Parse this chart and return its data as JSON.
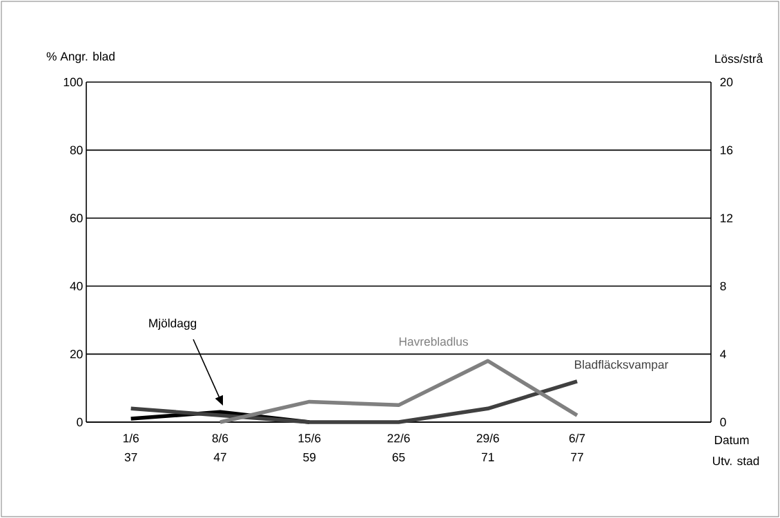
{
  "chart_data": {
    "type": "line",
    "categories": [
      "1/6",
      "8/6",
      "15/6",
      "22/6",
      "29/6",
      "6/7",
      null
    ],
    "series": [
      {
        "name": "Mjöldagg",
        "color": "#000000",
        "values": [
          1,
          3,
          0,
          null,
          null,
          null,
          null
        ]
      },
      {
        "name": "Havrebladlus",
        "color": "#808080",
        "axis": "y2",
        "values": [
          null,
          0,
          1.2,
          1.0,
          3.6,
          0.4,
          null
        ]
      },
      {
        "name": "Bladfläcksvampar",
        "color": "#404040",
        "values": [
          4,
          2,
          0,
          0,
          4,
          12,
          null
        ]
      }
    ],
    "ylabel": "% Angr. blad",
    "y2label": "Löss/strå",
    "xlabel": "Datum",
    "ylim": [
      0,
      100
    ],
    "yticks": [
      0,
      20,
      40,
      60,
      80,
      100
    ],
    "y2lim": [
      0,
      20
    ],
    "y2ticks": [
      0,
      4,
      8,
      12,
      16,
      20
    ],
    "annotations": [
      "Utv. stad",
      "37",
      "47",
      "59",
      "65",
      "71",
      "77"
    ],
    "grid": "y",
    "marker": "none",
    "line_style": "solid"
  }
}
